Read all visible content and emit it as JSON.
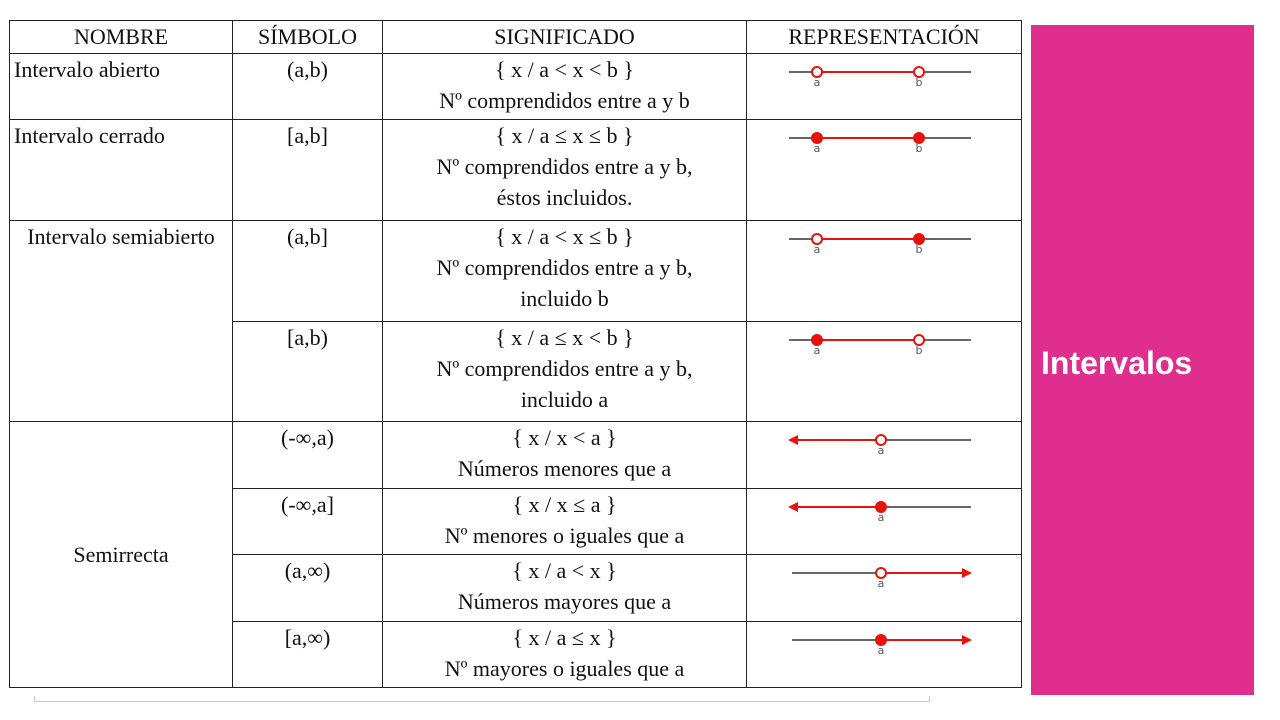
{
  "table": {
    "headers": {
      "name": "NOMBRE",
      "symbol": "SÍMBOLO",
      "meaning": "SIGNIFICADO",
      "representation": "REPRESENTACIÓN"
    },
    "rows": [
      {
        "name": "Intervalo abierto",
        "symbol": "(a,b)",
        "set": "{ x / a < x < b }",
        "desc": [
          "Nº comprendidos entre a y b"
        ],
        "rep": {
          "type": "interval",
          "left": "open",
          "right": "open",
          "left_label": "a",
          "right_label": "b"
        }
      },
      {
        "name": "Intervalo cerrado",
        "symbol": "[a,b]",
        "set": "{ x / a ≤ x ≤ b }",
        "desc": [
          "Nº comprendidos entre a y b,",
          "éstos incluidos."
        ],
        "rep": {
          "type": "interval",
          "left": "closed",
          "right": "closed",
          "left_label": "a",
          "right_label": "b"
        }
      },
      {
        "name": "Intervalo semiabierto",
        "symbol": "(a,b]",
        "set": "{ x / a < x ≤ b }",
        "desc": [
          "Nº comprendidos entre a y b,",
          "incluido b"
        ],
        "rep": {
          "type": "interval",
          "left": "open",
          "right": "closed",
          "left_label": "a",
          "right_label": "b"
        }
      },
      {
        "name": "",
        "symbol": "[a,b)",
        "set": "{ x / a ≤ x < b }",
        "desc": [
          "Nº comprendidos entre a y b,",
          "incluido a"
        ],
        "rep": {
          "type": "interval",
          "left": "closed",
          "right": "open",
          "left_label": "a",
          "right_label": "b"
        }
      },
      {
        "name": "Semirrecta",
        "symbol": "(-∞,a)",
        "set": "{ x / x < a }",
        "desc": [
          "Números menores que a"
        ],
        "rep": {
          "type": "ray-left",
          "point": "open",
          "label": "a"
        }
      },
      {
        "name": "",
        "symbol": "(-∞,a]",
        "set": "{ x / x ≤ a }",
        "desc": [
          "Nº menores o iguales que a"
        ],
        "rep": {
          "type": "ray-left",
          "point": "closed",
          "label": "a"
        }
      },
      {
        "name": "",
        "symbol": "(a,∞)",
        "set": "{ x / a < x }",
        "desc": [
          "Números mayores que a"
        ],
        "rep": {
          "type": "ray-right",
          "point": "open",
          "label": "a"
        }
      },
      {
        "name": "",
        "symbol": "[a,∞)",
        "set": "{ x / a ≤ x }",
        "desc": [
          "Nº mayores o iguales que a"
        ],
        "rep": {
          "type": "ray-right",
          "point": "closed",
          "label": "a"
        }
      }
    ]
  },
  "side_panel": {
    "title": "Intervalos",
    "color": "#e02e8f"
  },
  "colors": {
    "segment": "#e8120c",
    "axis": "#333333"
  }
}
